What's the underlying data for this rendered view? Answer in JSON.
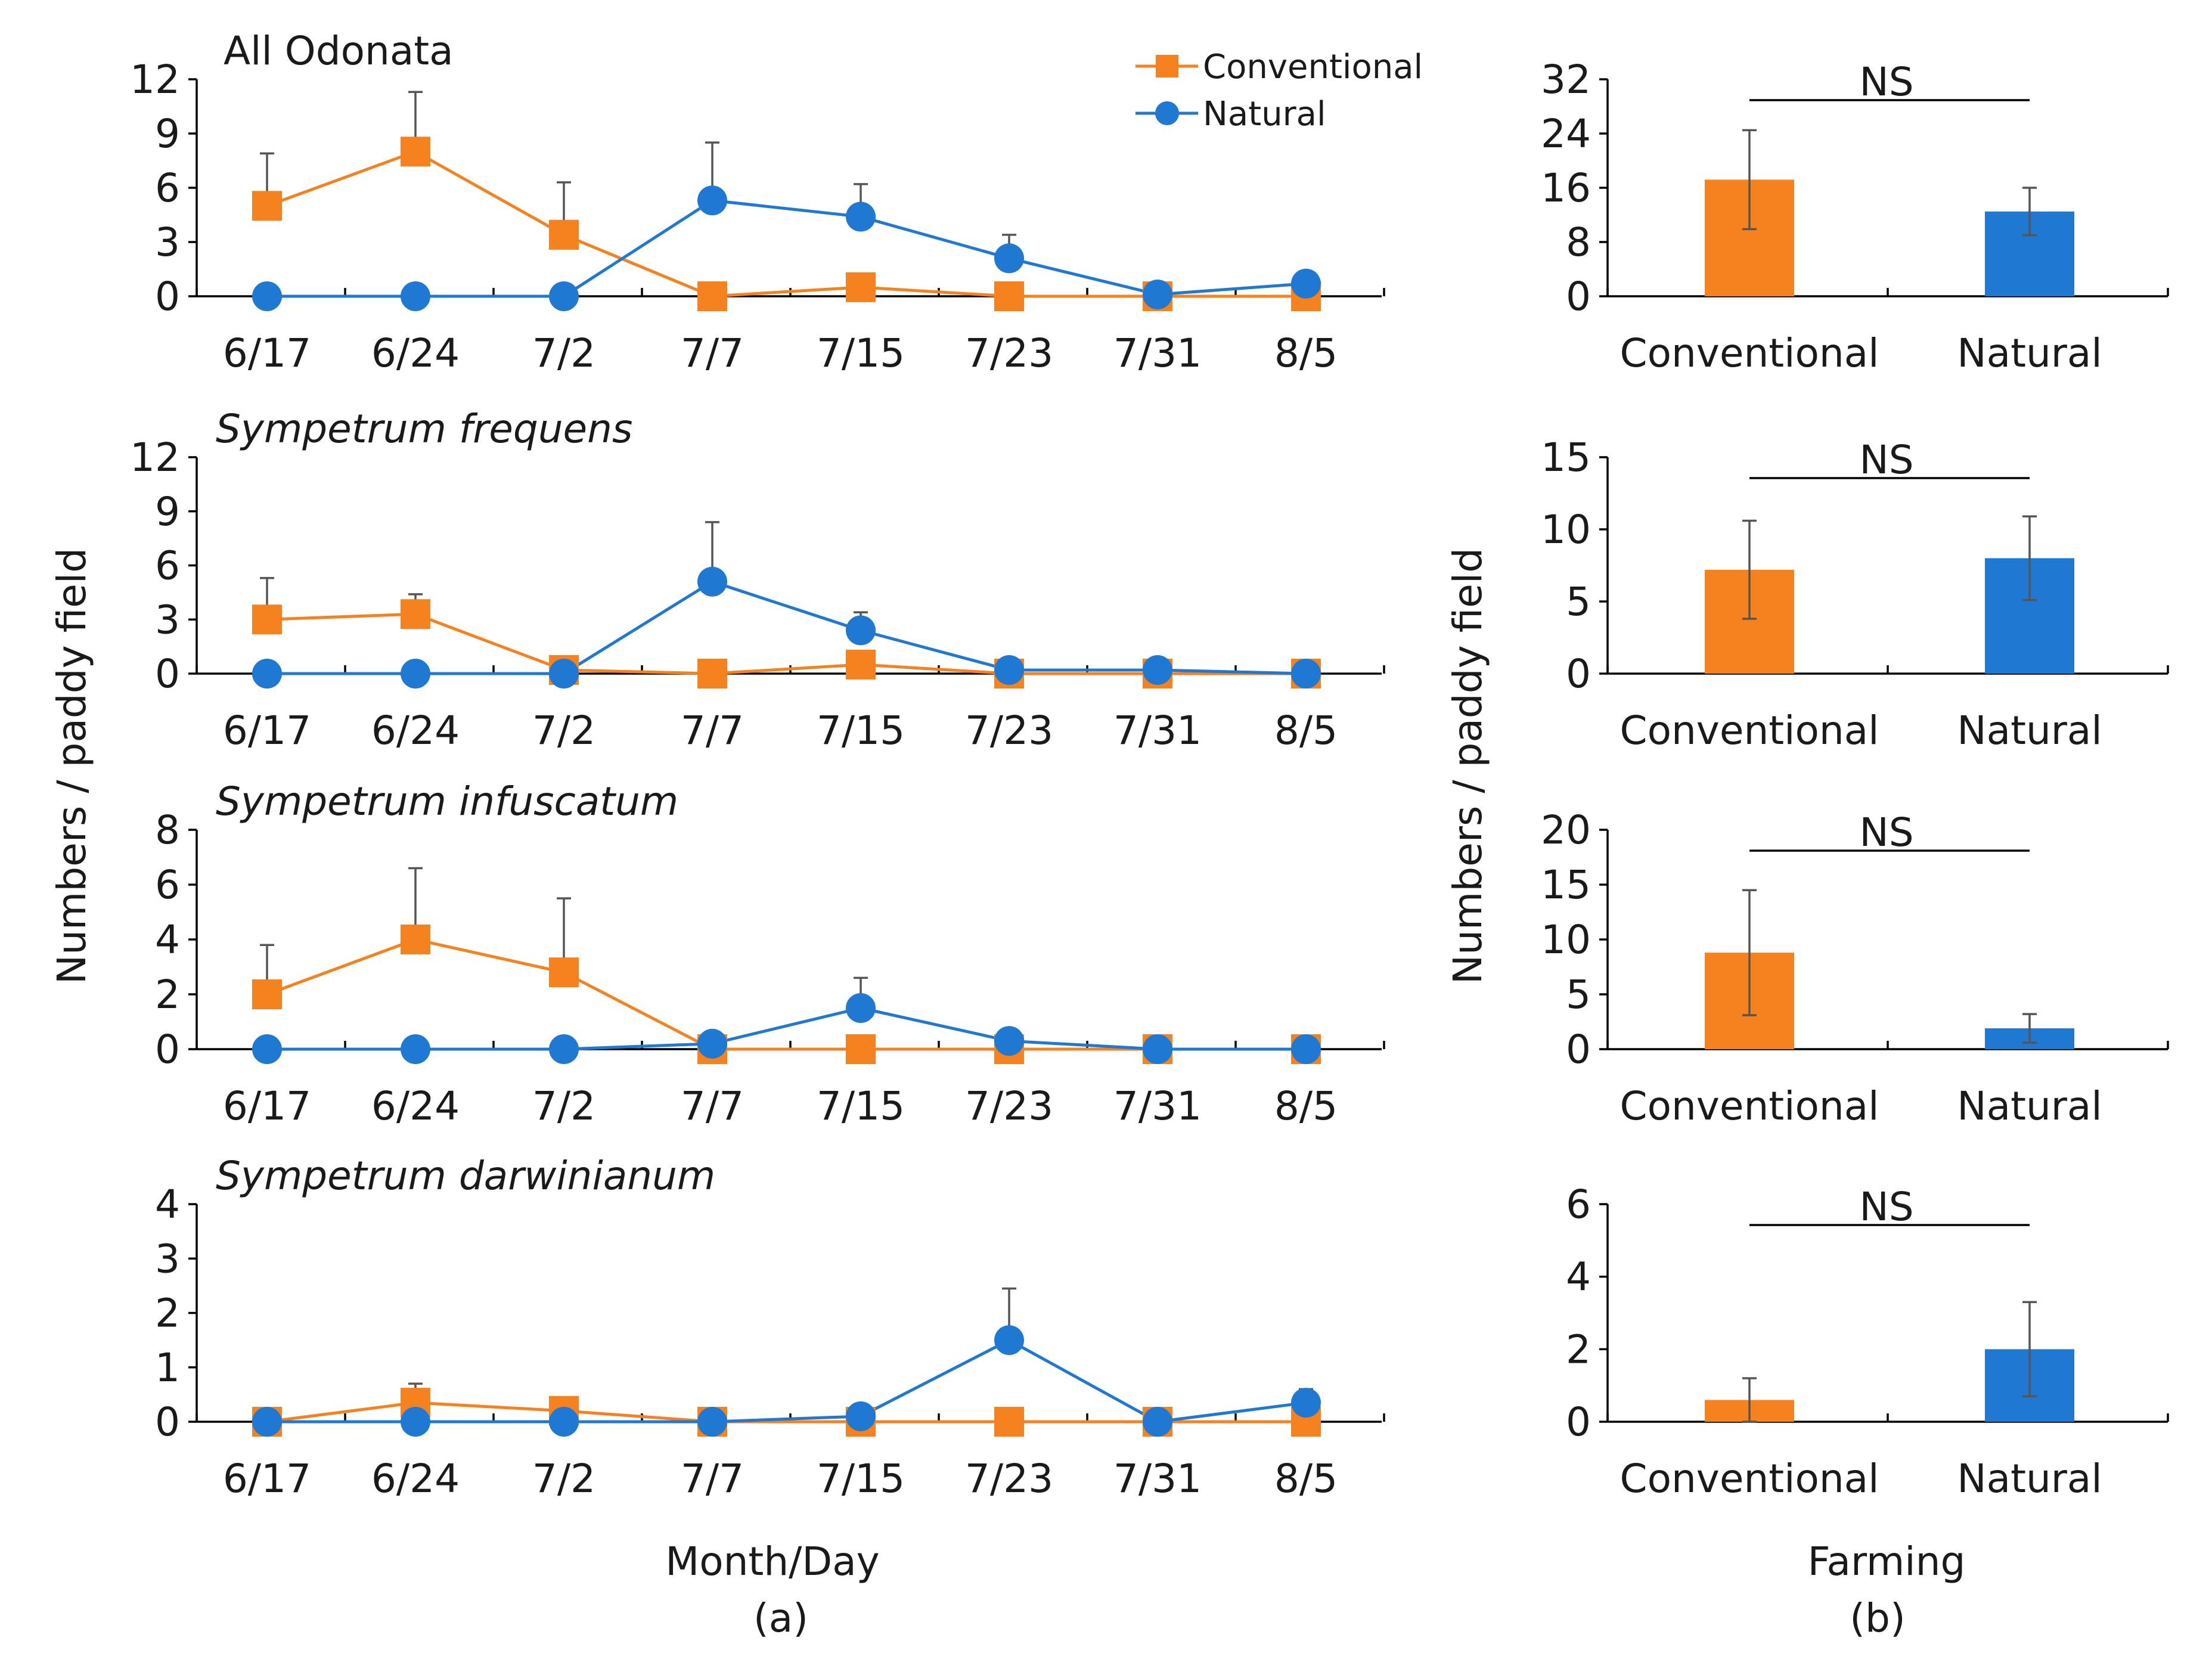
{
  "figure": {
    "xlabel_a": "Month/Day",
    "xlabel_b": "Farming",
    "ylabel_a": "Numbers / paddy field",
    "ylabel_b": "Numbers / paddy field",
    "panel_a_label": "(a)",
    "panel_b_label": "(b)",
    "legend": {
      "conventional": "Conventional",
      "natural": "Natural"
    },
    "colors": {
      "conventional": "#F5821F",
      "natural": "#1F78D1",
      "errorbar": "#555555",
      "axis": "#000000"
    }
  },
  "chart_data": [
    {
      "type": "line",
      "title": "All Odonata",
      "italic": false,
      "categories": [
        "6/17",
        "6/24",
        "7/2",
        "7/7",
        "7/15",
        "7/23",
        "7/31",
        "8/5"
      ],
      "ylim": [
        0,
        12
      ],
      "yticks": [
        0,
        3,
        6,
        9,
        12
      ],
      "series": [
        {
          "name": "Conventional",
          "values": [
            5.0,
            8.0,
            3.4,
            0.0,
            0.5,
            0.0,
            0.0,
            0.0
          ],
          "err": [
            2.9,
            3.3,
            2.9,
            0,
            0,
            0,
            0,
            0
          ]
        },
        {
          "name": "Natural",
          "values": [
            0.0,
            0.0,
            0.0,
            5.3,
            4.4,
            2.1,
            0.1,
            0.7
          ],
          "err": [
            0,
            0,
            0,
            3.2,
            1.8,
            1.3,
            0,
            0
          ]
        }
      ]
    },
    {
      "type": "bar",
      "categories": [
        "Conventional",
        "Natural"
      ],
      "values": [
        17.2,
        12.5
      ],
      "err": [
        7.3,
        3.5
      ],
      "ylim": [
        0,
        32
      ],
      "yticks": [
        0,
        8,
        16,
        24,
        32
      ],
      "annotation": "NS"
    },
    {
      "type": "line",
      "title": "Sympetrum frequens",
      "italic": true,
      "categories": [
        "6/17",
        "6/24",
        "7/2",
        "7/7",
        "7/15",
        "7/23",
        "7/31",
        "8/5"
      ],
      "ylim": [
        0,
        12
      ],
      "yticks": [
        0,
        3,
        6,
        9,
        12
      ],
      "series": [
        {
          "name": "Conventional",
          "values": [
            3.0,
            3.3,
            0.2,
            0.0,
            0.5,
            0.0,
            0.0,
            0.0
          ],
          "err": [
            2.3,
            1.1,
            0,
            0,
            0,
            0,
            0,
            0
          ]
        },
        {
          "name": "Natural",
          "values": [
            0.0,
            0.0,
            0.0,
            5.1,
            2.4,
            0.2,
            0.2,
            0.0
          ],
          "err": [
            0,
            0,
            0,
            3.3,
            1.0,
            0,
            0,
            0
          ]
        }
      ]
    },
    {
      "type": "bar",
      "categories": [
        "Conventional",
        "Natural"
      ],
      "values": [
        7.2,
        8.0
      ],
      "err": [
        3.4,
        2.9
      ],
      "ylim": [
        0,
        15
      ],
      "yticks": [
        0,
        5,
        10,
        15
      ],
      "annotation": "NS"
    },
    {
      "type": "line",
      "title": "Sympetrum infuscatum",
      "italic": true,
      "categories": [
        "6/17",
        "6/24",
        "7/2",
        "7/7",
        "7/15",
        "7/23",
        "7/31",
        "8/5"
      ],
      "ylim": [
        0,
        8
      ],
      "yticks": [
        0,
        2,
        4,
        6,
        8
      ],
      "series": [
        {
          "name": "Conventional",
          "values": [
            2.0,
            4.0,
            2.8,
            0.0,
            0.0,
            0.0,
            0.0,
            0.0
          ],
          "err": [
            1.8,
            2.6,
            2.7,
            0,
            0,
            0,
            0,
            0
          ]
        },
        {
          "name": "Natural",
          "values": [
            0.0,
            0.0,
            0.0,
            0.2,
            1.5,
            0.3,
            0.0,
            0.0
          ],
          "err": [
            0,
            0,
            0,
            0,
            1.1,
            0,
            0,
            0
          ]
        }
      ]
    },
    {
      "type": "bar",
      "categories": [
        "Conventional",
        "Natural"
      ],
      "values": [
        8.8,
        1.9
      ],
      "err": [
        5.7,
        1.3
      ],
      "ylim": [
        0,
        20
      ],
      "yticks": [
        0,
        5,
        10,
        15,
        20
      ],
      "annotation": "NS"
    },
    {
      "type": "line",
      "title": "Sympetrum darwinianum",
      "italic": true,
      "categories": [
        "6/17",
        "6/24",
        "7/2",
        "7/7",
        "7/15",
        "7/23",
        "7/31",
        "8/5"
      ],
      "ylim": [
        0,
        4
      ],
      "yticks": [
        0,
        1,
        2,
        3,
        4
      ],
      "series": [
        {
          "name": "Conventional",
          "values": [
            0.0,
            0.35,
            0.2,
            0.0,
            0.0,
            0.0,
            0.0,
            0.0
          ],
          "err": [
            0,
            0.35,
            0.25,
            0,
            0,
            0,
            0,
            0
          ]
        },
        {
          "name": "Natural",
          "values": [
            0.0,
            0.0,
            0.0,
            0.0,
            0.1,
            1.5,
            0.0,
            0.35
          ],
          "err": [
            0,
            0,
            0,
            0,
            0,
            0.95,
            0,
            0.25
          ]
        }
      ]
    },
    {
      "type": "bar",
      "categories": [
        "Conventional",
        "Natural"
      ],
      "values": [
        0.6,
        2.0
      ],
      "err": [
        0.6,
        1.3
      ],
      "ylim": [
        0,
        6
      ],
      "yticks": [
        0,
        2,
        4,
        6
      ],
      "annotation": "NS"
    }
  ]
}
